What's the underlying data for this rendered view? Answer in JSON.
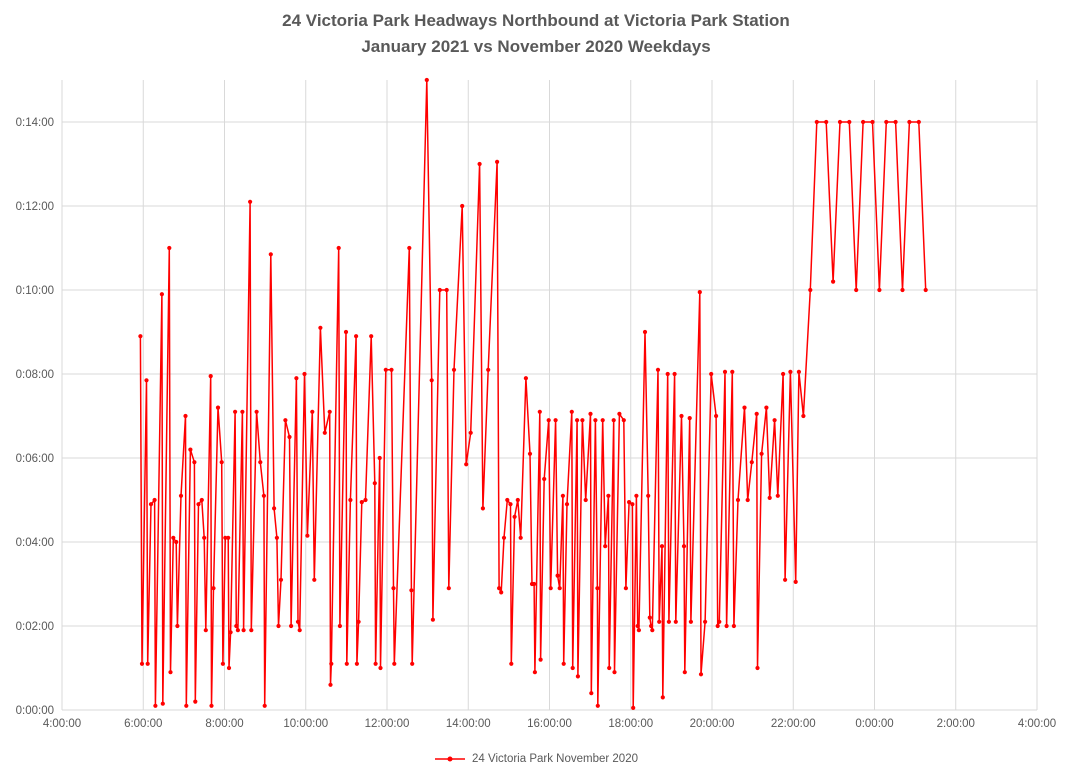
{
  "colors": {
    "background": "#FFFFFF",
    "grid": "#D9D9D9",
    "axis_text": "#595959",
    "title_text": "#595959",
    "series_red": "#FF0000"
  },
  "chart_data": {
    "type": "line",
    "title": "24 Victoria Park Headways Northbound at Victoria Park Station",
    "subtitle": "January 2021 vs November 2020 Weekdays",
    "grid": true,
    "legend_position": "bottom",
    "x_axis": {
      "unit": "time_of_day",
      "min_hour": 4,
      "max_hour": 28,
      "ticks": [
        {
          "hour": 4,
          "label": "4:00:00"
        },
        {
          "hour": 6,
          "label": "6:00:00"
        },
        {
          "hour": 8,
          "label": "8:00:00"
        },
        {
          "hour": 10,
          "label": "10:00:00"
        },
        {
          "hour": 12,
          "label": "12:00:00"
        },
        {
          "hour": 14,
          "label": "14:00:00"
        },
        {
          "hour": 16,
          "label": "16:00:00"
        },
        {
          "hour": 18,
          "label": "18:00:00"
        },
        {
          "hour": 20,
          "label": "20:00:00"
        },
        {
          "hour": 22,
          "label": "22:00:00"
        },
        {
          "hour": 24,
          "label": "0:00:00"
        },
        {
          "hour": 26,
          "label": "2:00:00"
        },
        {
          "hour": 28,
          "label": "4:00:00"
        }
      ]
    },
    "y_axis": {
      "unit": "headway_h:mm:ss",
      "min_minutes": 0,
      "plot_max_minutes": 15,
      "ticks": [
        {
          "minutes": 0,
          "label": "0:00:00"
        },
        {
          "minutes": 2,
          "label": "0:02:00"
        },
        {
          "minutes": 4,
          "label": "0:04:00"
        },
        {
          "minutes": 6,
          "label": "0:06:00"
        },
        {
          "minutes": 8,
          "label": "0:08:00"
        },
        {
          "minutes": 10,
          "label": "0:10:00"
        },
        {
          "minutes": 12,
          "label": "0:12:00"
        },
        {
          "minutes": 14,
          "label": "0:14:00"
        }
      ]
    },
    "series": [
      {
        "name": "24 Victoria Park November 2020",
        "color": "#FF0000",
        "marker": "circle",
        "point_format": [
          "hour_of_day_decimal",
          "headway_minutes"
        ],
        "points": [
          [
            5.93,
            8.9
          ],
          [
            5.97,
            1.1
          ],
          [
            6.08,
            7.85
          ],
          [
            6.11,
            1.1
          ],
          [
            6.19,
            4.9
          ],
          [
            6.28,
            5.0
          ],
          [
            6.3,
            0.1
          ],
          [
            6.46,
            9.9
          ],
          [
            6.48,
            0.15
          ],
          [
            6.64,
            11.0
          ],
          [
            6.67,
            0.9
          ],
          [
            6.74,
            4.1
          ],
          [
            6.81,
            4.0
          ],
          [
            6.84,
            2.0
          ],
          [
            6.93,
            5.1
          ],
          [
            7.04,
            7.0
          ],
          [
            7.06,
            0.1
          ],
          [
            7.16,
            6.2
          ],
          [
            7.26,
            5.9
          ],
          [
            7.28,
            0.2
          ],
          [
            7.36,
            4.9
          ],
          [
            7.44,
            5.0
          ],
          [
            7.5,
            4.1
          ],
          [
            7.54,
            1.9
          ],
          [
            7.66,
            7.95
          ],
          [
            7.68,
            0.1
          ],
          [
            7.73,
            2.9
          ],
          [
            7.84,
            7.2
          ],
          [
            7.93,
            5.9
          ],
          [
            7.96,
            1.1
          ],
          [
            8.02,
            4.1
          ],
          [
            8.09,
            4.1
          ],
          [
            8.11,
            1.0
          ],
          [
            8.15,
            1.85
          ],
          [
            8.26,
            7.1
          ],
          [
            8.29,
            2.0
          ],
          [
            8.33,
            1.9
          ],
          [
            8.44,
            7.1
          ],
          [
            8.47,
            1.9
          ],
          [
            8.63,
            12.1
          ],
          [
            8.66,
            1.9
          ],
          [
            8.79,
            7.1
          ],
          [
            8.88,
            5.9
          ],
          [
            8.97,
            5.1
          ],
          [
            8.99,
            0.1
          ],
          [
            9.14,
            10.85
          ],
          [
            9.22,
            4.8
          ],
          [
            9.29,
            4.1
          ],
          [
            9.33,
            2.0
          ],
          [
            9.39,
            3.1
          ],
          [
            9.5,
            6.9
          ],
          [
            9.6,
            6.5
          ],
          [
            9.64,
            2.0
          ],
          [
            9.77,
            7.9
          ],
          [
            9.81,
            2.1
          ],
          [
            9.85,
            1.9
          ],
          [
            9.97,
            8.0
          ],
          [
            10.04,
            4.15
          ],
          [
            10.16,
            7.1
          ],
          [
            10.21,
            3.1
          ],
          [
            10.36,
            9.1
          ],
          [
            10.47,
            6.6
          ],
          [
            10.59,
            7.1
          ],
          [
            10.61,
            0.6
          ],
          [
            10.63,
            1.1
          ],
          [
            10.81,
            11.0
          ],
          [
            10.84,
            2.0
          ],
          [
            10.99,
            9.0
          ],
          [
            11.01,
            1.1
          ],
          [
            11.1,
            5.0
          ],
          [
            11.24,
            8.9
          ],
          [
            11.26,
            1.1
          ],
          [
            11.3,
            2.1
          ],
          [
            11.38,
            4.95
          ],
          [
            11.47,
            5.0
          ],
          [
            11.61,
            8.9
          ],
          [
            11.7,
            5.4
          ],
          [
            11.72,
            1.1
          ],
          [
            11.82,
            6.0
          ],
          [
            11.84,
            1.0
          ],
          [
            11.97,
            8.1
          ],
          [
            12.11,
            8.1
          ],
          [
            12.16,
            2.9
          ],
          [
            12.18,
            1.1
          ],
          [
            12.55,
            11.0
          ],
          [
            12.6,
            2.85
          ],
          [
            12.62,
            1.1
          ],
          [
            12.98,
            15.0
          ],
          [
            13.1,
            7.85
          ],
          [
            13.13,
            2.15
          ],
          [
            13.3,
            10.0
          ],
          [
            13.47,
            10.0
          ],
          [
            13.52,
            2.9
          ],
          [
            13.65,
            8.1
          ],
          [
            13.85,
            12.0
          ],
          [
            13.95,
            5.85
          ],
          [
            14.06,
            6.6
          ],
          [
            14.28,
            13.0
          ],
          [
            14.36,
            4.8
          ],
          [
            14.49,
            8.1
          ],
          [
            14.71,
            13.05
          ],
          [
            14.76,
            2.9
          ],
          [
            14.81,
            2.8
          ],
          [
            14.88,
            4.1
          ],
          [
            14.96,
            5.0
          ],
          [
            15.04,
            4.9
          ],
          [
            15.06,
            1.1
          ],
          [
            15.14,
            4.6
          ],
          [
            15.22,
            5.0
          ],
          [
            15.29,
            4.1
          ],
          [
            15.42,
            7.9
          ],
          [
            15.52,
            6.1
          ],
          [
            15.57,
            3.0
          ],
          [
            15.62,
            3.0
          ],
          [
            15.64,
            0.9
          ],
          [
            15.76,
            7.1
          ],
          [
            15.78,
            1.2
          ],
          [
            15.87,
            5.5
          ],
          [
            15.98,
            6.9
          ],
          [
            16.03,
            2.9
          ],
          [
            16.15,
            6.9
          ],
          [
            16.2,
            3.2
          ],
          [
            16.25,
            2.9
          ],
          [
            16.33,
            5.1
          ],
          [
            16.35,
            1.1
          ],
          [
            16.43,
            4.9
          ],
          [
            16.55,
            7.1
          ],
          [
            16.57,
            1.0
          ],
          [
            16.68,
            6.9
          ],
          [
            16.7,
            0.8
          ],
          [
            16.81,
            6.9
          ],
          [
            16.89,
            5.0
          ],
          [
            17.01,
            7.05
          ],
          [
            17.03,
            0.4
          ],
          [
            17.13,
            6.9
          ],
          [
            17.18,
            2.9
          ],
          [
            17.19,
            0.1
          ],
          [
            17.31,
            6.9
          ],
          [
            17.37,
            3.9
          ],
          [
            17.45,
            5.1
          ],
          [
            17.47,
            1.0
          ],
          [
            17.58,
            6.9
          ],
          [
            17.6,
            0.9
          ],
          [
            17.72,
            7.05
          ],
          [
            17.83,
            6.9
          ],
          [
            17.88,
            2.9
          ],
          [
            17.96,
            4.95
          ],
          [
            18.04,
            4.9
          ],
          [
            18.06,
            0.05
          ],
          [
            18.14,
            5.1
          ],
          [
            18.17,
            2.0
          ],
          [
            18.2,
            1.9
          ],
          [
            18.35,
            9.0
          ],
          [
            18.43,
            5.1
          ],
          [
            18.47,
            2.2
          ],
          [
            18.5,
            2.0
          ],
          [
            18.53,
            1.9
          ],
          [
            18.67,
            8.1
          ],
          [
            18.7,
            2.1
          ],
          [
            18.77,
            3.9
          ],
          [
            18.79,
            0.3
          ],
          [
            18.91,
            8.0
          ],
          [
            18.94,
            2.1
          ],
          [
            19.08,
            8.0
          ],
          [
            19.11,
            2.1
          ],
          [
            19.25,
            7.0
          ],
          [
            19.31,
            3.9
          ],
          [
            19.33,
            0.9
          ],
          [
            19.45,
            6.95
          ],
          [
            19.48,
            2.1
          ],
          [
            19.7,
            9.95
          ],
          [
            19.73,
            0.85
          ],
          [
            19.83,
            2.1
          ],
          [
            19.98,
            8.0
          ],
          [
            20.1,
            7.0
          ],
          [
            20.14,
            2.0
          ],
          [
            20.18,
            2.1
          ],
          [
            20.32,
            8.05
          ],
          [
            20.36,
            2.0
          ],
          [
            20.5,
            8.05
          ],
          [
            20.54,
            2.0
          ],
          [
            20.64,
            5.0
          ],
          [
            20.8,
            7.2
          ],
          [
            20.88,
            5.0
          ],
          [
            20.98,
            5.9
          ],
          [
            21.1,
            7.05
          ],
          [
            21.12,
            1.0
          ],
          [
            21.22,
            6.1
          ],
          [
            21.34,
            7.2
          ],
          [
            21.42,
            5.05
          ],
          [
            21.54,
            6.9
          ],
          [
            21.62,
            5.1
          ],
          [
            21.75,
            8.0
          ],
          [
            21.8,
            3.1
          ],
          [
            21.93,
            8.05
          ],
          [
            22.06,
            3.05
          ],
          [
            22.14,
            8.05
          ],
          [
            22.25,
            7.0
          ],
          [
            22.42,
            10.0
          ],
          [
            22.58,
            14.0
          ],
          [
            22.81,
            14.0
          ],
          [
            22.98,
            10.2
          ],
          [
            23.15,
            14.0
          ],
          [
            23.38,
            14.0
          ],
          [
            23.55,
            10.0
          ],
          [
            23.72,
            14.0
          ],
          [
            23.95,
            14.0
          ],
          [
            24.12,
            10.0
          ],
          [
            24.29,
            14.0
          ],
          [
            24.52,
            14.0
          ],
          [
            24.69,
            10.0
          ],
          [
            24.86,
            14.0
          ],
          [
            25.09,
            14.0
          ],
          [
            25.26,
            10.0
          ]
        ]
      }
    ]
  }
}
